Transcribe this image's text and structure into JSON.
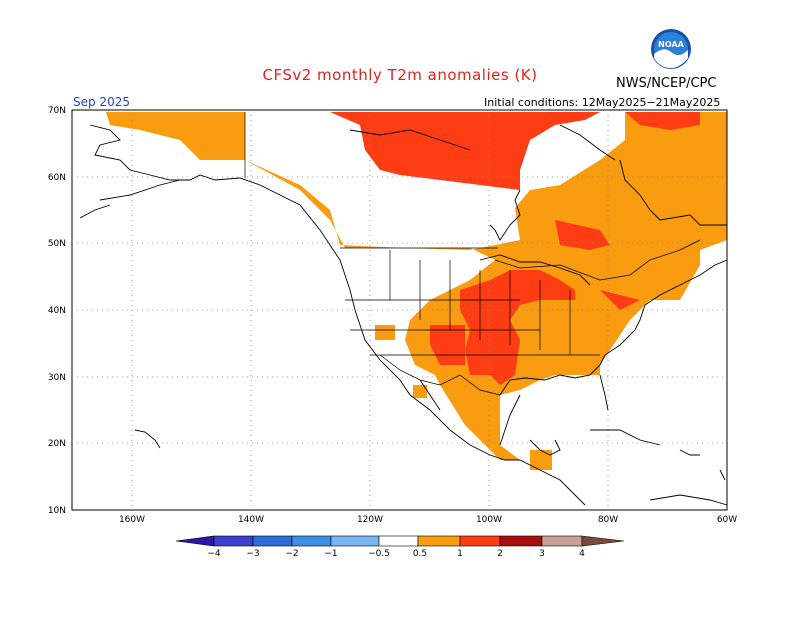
{
  "header": {
    "title": "CFSv2 monthly T2m anomalies (K)",
    "agency": "NWS/NCEP/CPC",
    "logo_text": "NOAA",
    "month": "Sep 2025",
    "initial_conditions": "Initial conditions: 12May2025−21May2025"
  },
  "axes": {
    "lat_labels": [
      "70N",
      "60N",
      "50N",
      "40N",
      "30N",
      "20N",
      "10N"
    ],
    "lon_labels": [
      "160W",
      "140W",
      "120W",
      "100W",
      "80W",
      "60W"
    ]
  },
  "colorbar": {
    "labels": [
      "−4",
      "−3",
      "−2",
      "−1",
      "−0.5",
      "0.5",
      "1",
      "2",
      "3",
      "4"
    ],
    "colors": [
      "#2a17a6",
      "#3c3fcf",
      "#2f6ad6",
      "#3c8fe6",
      "#77b8f1",
      "#ffffff",
      "#fa9c10",
      "#ff3d14",
      "#a80c0c",
      "#c7a196",
      "#7a4a3a"
    ]
  },
  "chart_data": {
    "type": "heatmap",
    "title": "CFSv2 monthly T2m anomalies (K)",
    "units": "K",
    "period": "Sep 2025",
    "lat_range": [
      10,
      70
    ],
    "lon_range": [
      -170,
      -60
    ],
    "categories": [
      "<-4",
      "-4 to -3",
      "-3 to -2",
      "-2 to -1",
      "-1 to -0.5",
      "-0.5 to 0.5",
      "0.5 to 1",
      "1 to 2",
      "2 to 3",
      "3 to 4",
      ">4"
    ]
  }
}
